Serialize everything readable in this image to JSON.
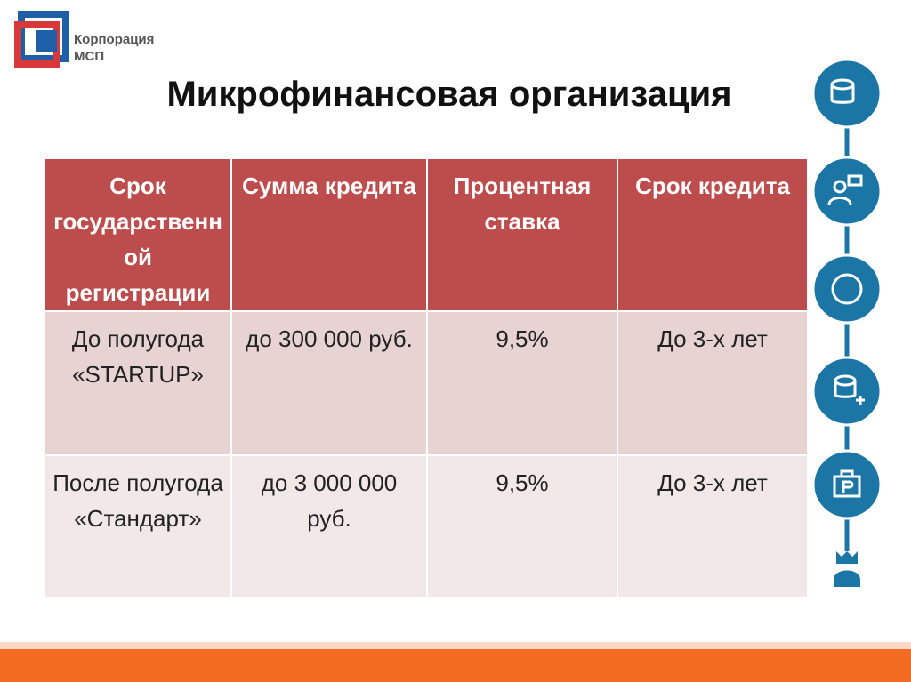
{
  "logo": {
    "line1": "Корпорация",
    "line2": "МСП"
  },
  "title": "Микрофинансовая организация",
  "table": {
    "header": [
      "Срок государственной регистрации",
      "Сумма кредита",
      "Процентная ставка",
      "Срок кредита"
    ],
    "rows": [
      [
        "До полугода «STARTUP»",
        "до 300 000 руб.",
        "9,5%",
        "До 3-х лет"
      ],
      [
        "После полугода «Стандарт»",
        "до 3 000 000 руб.",
        "9,5%",
        "До 3-х лет"
      ]
    ]
  }
}
